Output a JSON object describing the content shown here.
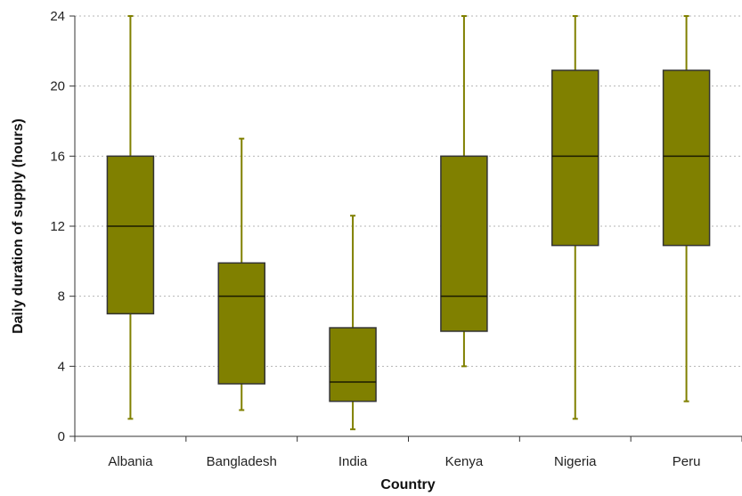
{
  "chart_data": {
    "type": "boxplot",
    "title": "",
    "xlabel": "Country",
    "ylabel": "Daily duration of supply (hours)",
    "ylim": [
      0,
      24
    ],
    "yticks": [
      0,
      4,
      8,
      12,
      16,
      20,
      24
    ],
    "ytick_labels": [
      "0",
      "4",
      "8",
      "12",
      "16",
      "20",
      "24"
    ],
    "grid": "horizontal-dotted",
    "categories": [
      "Albania",
      "Bangladesh",
      "India",
      "Kenya",
      "Nigeria",
      "Peru"
    ],
    "boxes": [
      {
        "category": "Albania",
        "min": 1,
        "q1": 7,
        "median": 12,
        "q3": 16,
        "max": 24
      },
      {
        "category": "Bangladesh",
        "min": 1.5,
        "q1": 3,
        "median": 8,
        "q3": 9.9,
        "max": 17
      },
      {
        "category": "India",
        "min": 0.4,
        "q1": 2,
        "median": 3.1,
        "q3": 6.2,
        "max": 12.6
      },
      {
        "category": "Kenya",
        "min": 4,
        "q1": 6,
        "median": 8,
        "q3": 16,
        "max": 24
      },
      {
        "category": "Nigeria",
        "min": 1,
        "q1": 10.9,
        "median": 16,
        "q3": 20.9,
        "max": 24
      },
      {
        "category": "Peru",
        "min": 2,
        "q1": 10.9,
        "median": 16,
        "q3": 20.9,
        "max": 24
      }
    ],
    "colors": {
      "box_fill": "#808000",
      "whisker": "#808000",
      "box_stroke": "#333333",
      "median": "#1a1a00"
    }
  }
}
